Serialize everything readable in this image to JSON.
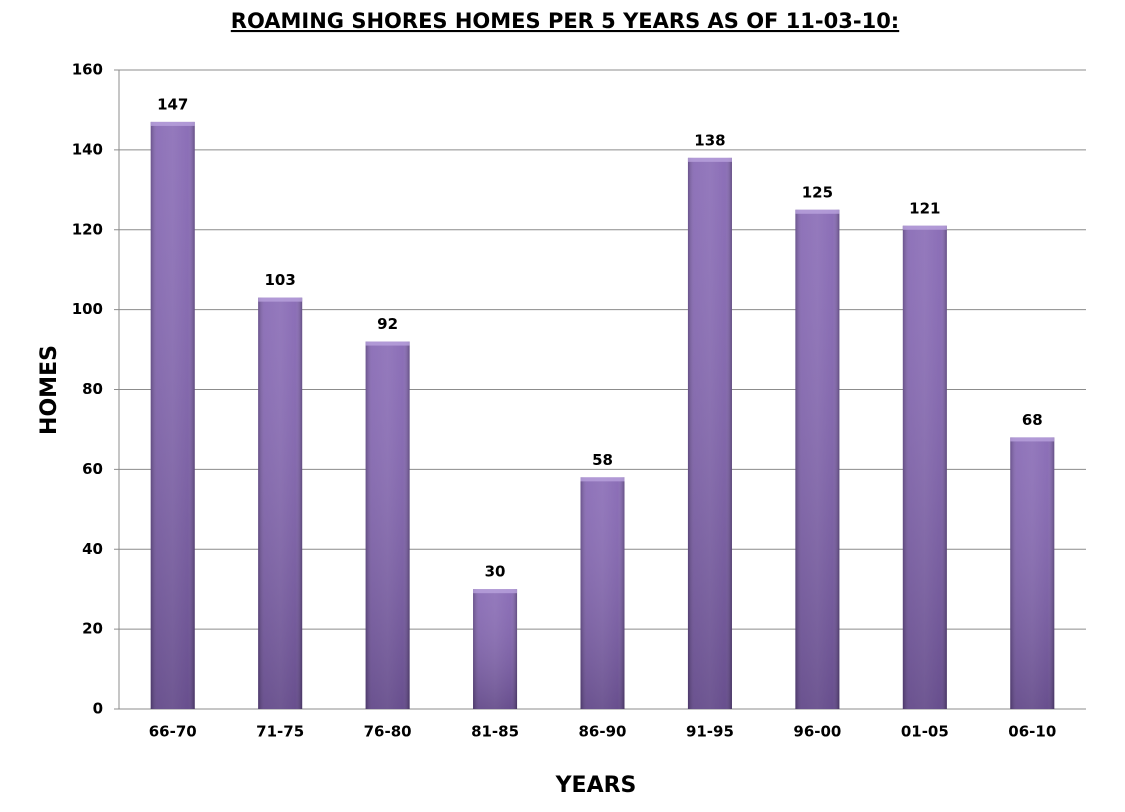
{
  "chart_data": {
    "type": "bar",
    "title": "ROAMING SHORES HOMES PER 5 YEARS AS OF 11-03-10:",
    "x_label": "YEARS",
    "y_label": "HOMES",
    "categories": [
      "66-70",
      "71-75",
      "76-80",
      "81-85",
      "86-90",
      "91-95",
      "96-00",
      "01-05",
      "06-10"
    ],
    "values": [
      147,
      103,
      92,
      30,
      58,
      138,
      125,
      121,
      68
    ],
    "color": "#7b5aad",
    "ylim": [
      0,
      160
    ],
    "yticks": [
      0,
      20,
      40,
      60,
      80,
      100,
      120,
      140,
      160
    ],
    "grid": true
  }
}
